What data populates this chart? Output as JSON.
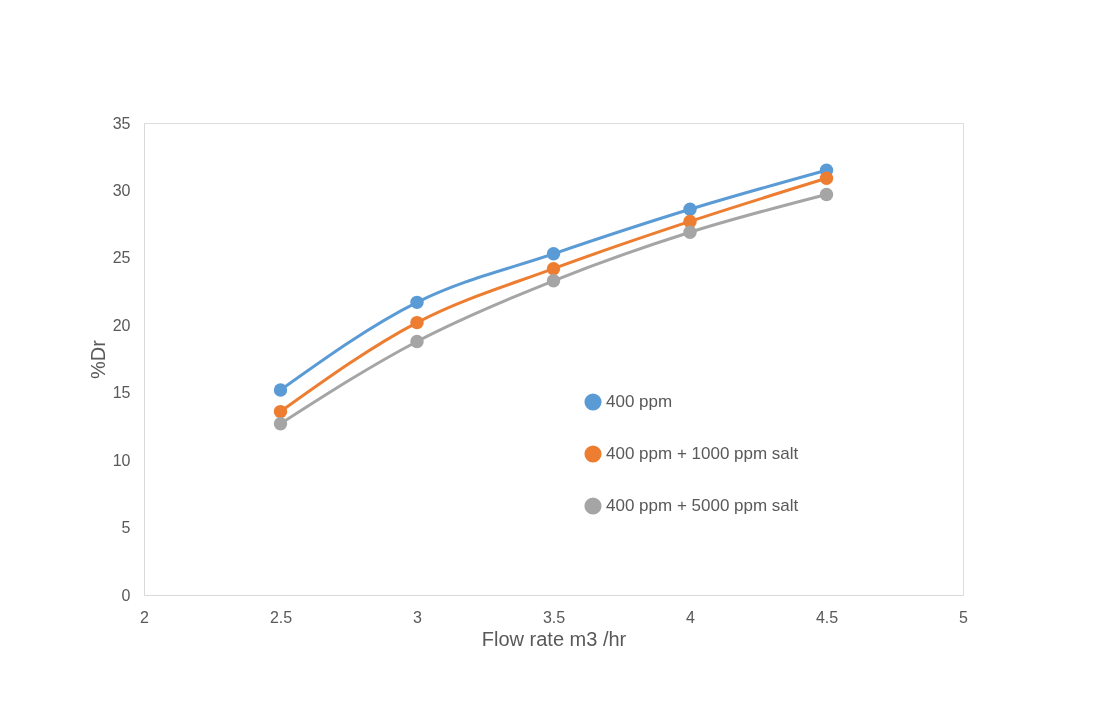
{
  "chart_data": {
    "type": "line",
    "xlabel": "Flow rate m3 /hr",
    "ylabel": "%Dr",
    "x": [
      2.5,
      3,
      3.5,
      4,
      4.5
    ],
    "series": [
      {
        "name": "400 ppm",
        "color": "#5b9bd5",
        "values": [
          15.2,
          21.7,
          25.3,
          28.6,
          31.5
        ]
      },
      {
        "name": "400 ppm + 1000 ppm salt",
        "color": "#ed7d31",
        "values": [
          13.6,
          20.2,
          24.2,
          27.7,
          30.9
        ]
      },
      {
        "name": "400 ppm + 5000 ppm salt",
        "color": "#a5a5a5",
        "values": [
          12.7,
          18.8,
          23.3,
          26.9,
          29.7
        ]
      }
    ],
    "xlim": [
      2,
      5
    ],
    "xticks": [
      2,
      2.5,
      3,
      3.5,
      4,
      4.5,
      5
    ],
    "ylim": [
      0,
      35
    ],
    "yticks": [
      0,
      5,
      10,
      15,
      20,
      25,
      30,
      35
    ],
    "grid": false,
    "legend": "right",
    "marker": "circle",
    "line_style": "solid"
  }
}
